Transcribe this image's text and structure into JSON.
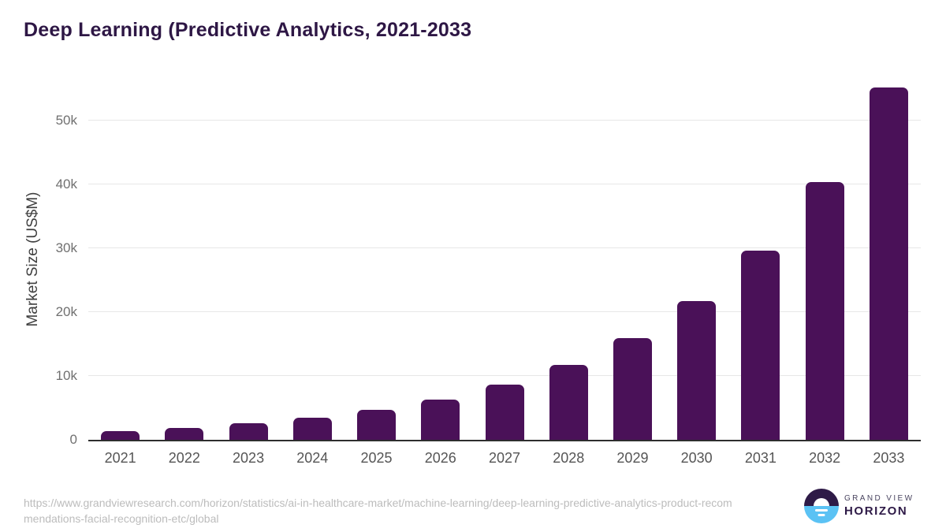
{
  "title": "Deep Learning (Predictive Analytics, 2021-2033",
  "footer": {
    "source_url": "https://www.grandviewresearch.com/horizon/statistics/ai-in-healthcare-market/machine-learning/deep-learning-predictive-analytics-product-recommendations-facial-recognition-etc/global"
  },
  "logo": {
    "line1": "GRAND VIEW",
    "line2": "HORIZON"
  },
  "colors": {
    "bar": "#4a1158",
    "title": "#2e1745",
    "grid": "#e7e7e7",
    "axis": "#2e2e2e",
    "tick": "#707070",
    "xlabel": "#555555",
    "url": "#bcbcbc",
    "logo_dark": "#2e1a47",
    "logo_blue": "#5bc2f4"
  },
  "chart_data": {
    "type": "bar",
    "categories": [
      "2021",
      "2022",
      "2023",
      "2024",
      "2025",
      "2026",
      "2027",
      "2028",
      "2029",
      "2030",
      "2031",
      "2032",
      "2033"
    ],
    "values": [
      1300,
      1900,
      2650,
      3500,
      4750,
      6350,
      8650,
      11700,
      15900,
      21700,
      29650,
      40400,
      55200
    ],
    "title": "Deep Learning (Predictive Analytics, 2021-2033",
    "xlabel": "",
    "ylabel": "Market Size (US$M)",
    "ylim": [
      0,
      56600
    ],
    "yticks": [
      0,
      10000,
      20000,
      30000,
      40000,
      50000
    ],
    "ytick_labels": [
      "0",
      "10k",
      "20k",
      "30k",
      "40k",
      "50k"
    ],
    "grid": "horizontal",
    "legend": false,
    "bar_color": "#4a1158"
  }
}
